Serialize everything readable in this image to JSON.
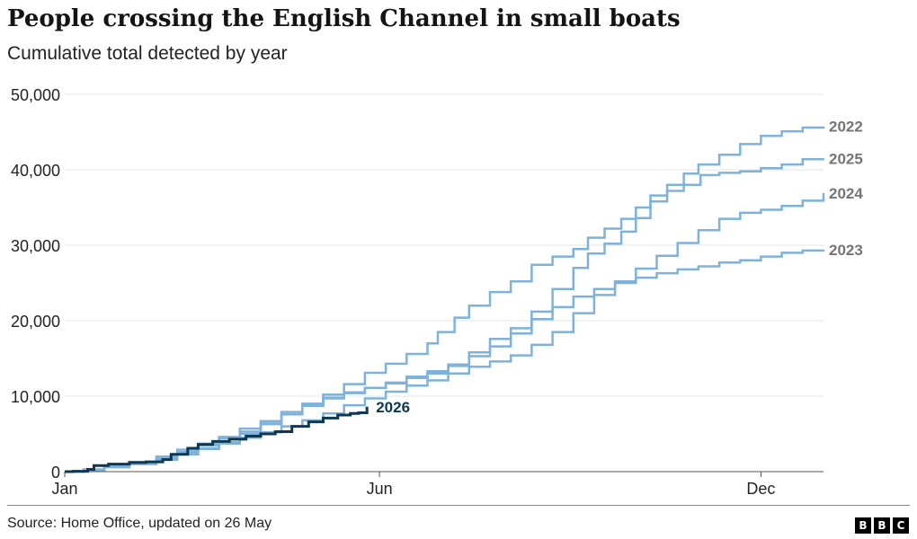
{
  "header": {
    "title": "People crossing the English Channel in small boats",
    "subtitle": "Cumulative total detected by year"
  },
  "footer": {
    "source": "Source: Home Office, updated on 26 May",
    "logo": [
      "B",
      "B",
      "C"
    ]
  },
  "colors": {
    "past_years": "#7fb2da",
    "current_year": "#0c3854",
    "label_past": "#757575",
    "gridline": "#e6e6e6",
    "axis": "#555555"
  },
  "chart_data": {
    "type": "line",
    "title": "People crossing the English Channel in small boats",
    "subtitle": "Cumulative total detected by year",
    "x_unit": "day of year",
    "xlim": [
      1,
      365
    ],
    "ylim": [
      0,
      50000
    ],
    "y_ticks": [
      0,
      10000,
      20000,
      30000,
      40000,
      50000
    ],
    "y_tick_labels": [
      "0",
      "10,000",
      "20,000",
      "30,000",
      "40,000",
      "50,000"
    ],
    "x_ticks": [
      1,
      152,
      335
    ],
    "x_tick_labels": [
      "Jan",
      "Jun",
      "Dec"
    ],
    "grid": true,
    "legend": "direct labels at line ends",
    "series": [
      {
        "name": "2022",
        "emphasis": false,
        "points": [
          [
            1,
            0
          ],
          [
            10,
            250
          ],
          [
            20,
            700
          ],
          [
            32,
            1200
          ],
          [
            45,
            1800
          ],
          [
            55,
            2600
          ],
          [
            65,
            3500
          ],
          [
            75,
            4400
          ],
          [
            85,
            5300
          ],
          [
            95,
            6600
          ],
          [
            105,
            7900
          ],
          [
            115,
            9000
          ],
          [
            125,
            10200
          ],
          [
            135,
            11600
          ],
          [
            145,
            13100
          ],
          [
            155,
            14300
          ],
          [
            165,
            15600
          ],
          [
            175,
            17000
          ],
          [
            180,
            18500
          ],
          [
            188,
            20400
          ],
          [
            195,
            22000
          ],
          [
            205,
            23800
          ],
          [
            215,
            25200
          ],
          [
            225,
            27400
          ],
          [
            235,
            28500
          ],
          [
            245,
            29500
          ],
          [
            252,
            31000
          ],
          [
            260,
            32200
          ],
          [
            268,
            33500
          ],
          [
            275,
            35000
          ],
          [
            282,
            36600
          ],
          [
            290,
            38000
          ],
          [
            298,
            39500
          ],
          [
            305,
            40700
          ],
          [
            315,
            42000
          ],
          [
            325,
            43400
          ],
          [
            335,
            44500
          ],
          [
            345,
            45100
          ],
          [
            355,
            45600
          ],
          [
            365,
            45750
          ]
        ]
      },
      {
        "name": "2025",
        "emphasis": false,
        "points": [
          [
            1,
            0
          ],
          [
            10,
            300
          ],
          [
            20,
            800
          ],
          [
            32,
            1300
          ],
          [
            45,
            2000
          ],
          [
            55,
            2900
          ],
          [
            65,
            3700
          ],
          [
            75,
            4600
          ],
          [
            85,
            5700
          ],
          [
            95,
            6700
          ],
          [
            105,
            7600
          ],
          [
            115,
            8700
          ],
          [
            125,
            9800
          ],
          [
            135,
            10500
          ],
          [
            145,
            11100
          ],
          [
            155,
            11800
          ],
          [
            165,
            12400
          ],
          [
            175,
            13000
          ],
          [
            185,
            14000
          ],
          [
            195,
            15800
          ],
          [
            205,
            17600
          ],
          [
            215,
            19000
          ],
          [
            225,
            21200
          ],
          [
            235,
            24200
          ],
          [
            245,
            27000
          ],
          [
            252,
            28900
          ],
          [
            260,
            30200
          ],
          [
            268,
            31800
          ],
          [
            275,
            33600
          ],
          [
            282,
            35800
          ],
          [
            290,
            37200
          ],
          [
            298,
            38000
          ],
          [
            306,
            39300
          ],
          [
            315,
            39600
          ],
          [
            325,
            39800
          ],
          [
            335,
            40200
          ],
          [
            345,
            40700
          ],
          [
            355,
            41400
          ],
          [
            365,
            41500
          ]
        ]
      },
      {
        "name": "2024",
        "emphasis": false,
        "points": [
          [
            1,
            0
          ],
          [
            10,
            200
          ],
          [
            20,
            600
          ],
          [
            32,
            1100
          ],
          [
            45,
            1600
          ],
          [
            55,
            2300
          ],
          [
            65,
            3000
          ],
          [
            75,
            3700
          ],
          [
            85,
            4500
          ],
          [
            95,
            5200
          ],
          [
            105,
            6000
          ],
          [
            115,
            6800
          ],
          [
            125,
            7700
          ],
          [
            135,
            8800
          ],
          [
            145,
            9700
          ],
          [
            155,
            10600
          ],
          [
            165,
            11400
          ],
          [
            175,
            12100
          ],
          [
            185,
            13000
          ],
          [
            195,
            13900
          ],
          [
            205,
            14600
          ],
          [
            215,
            15400
          ],
          [
            225,
            16800
          ],
          [
            235,
            18500
          ],
          [
            245,
            21000
          ],
          [
            255,
            23400
          ],
          [
            265,
            25200
          ],
          [
            275,
            26900
          ],
          [
            285,
            28600
          ],
          [
            295,
            30300
          ],
          [
            305,
            32000
          ],
          [
            315,
            33500
          ],
          [
            325,
            34300
          ],
          [
            335,
            34700
          ],
          [
            345,
            35200
          ],
          [
            355,
            35900
          ],
          [
            365,
            36900
          ]
        ]
      },
      {
        "name": "2023",
        "emphasis": false,
        "points": [
          [
            1,
            0
          ],
          [
            10,
            200
          ],
          [
            20,
            600
          ],
          [
            32,
            1000
          ],
          [
            45,
            1600
          ],
          [
            55,
            2300
          ],
          [
            65,
            3100
          ],
          [
            75,
            3900
          ],
          [
            85,
            5000
          ],
          [
            95,
            6300
          ],
          [
            105,
            7600
          ],
          [
            115,
            8900
          ],
          [
            125,
            9700
          ],
          [
            135,
            10400
          ],
          [
            145,
            11100
          ],
          [
            155,
            11700
          ],
          [
            165,
            12600
          ],
          [
            175,
            13300
          ],
          [
            185,
            14200
          ],
          [
            195,
            15300
          ],
          [
            205,
            16600
          ],
          [
            215,
            18300
          ],
          [
            225,
            20200
          ],
          [
            235,
            21800
          ],
          [
            245,
            23200
          ],
          [
            255,
            24200
          ],
          [
            265,
            25000
          ],
          [
            275,
            25700
          ],
          [
            285,
            26300
          ],
          [
            295,
            26800
          ],
          [
            305,
            27200
          ],
          [
            315,
            27700
          ],
          [
            325,
            28000
          ],
          [
            335,
            28500
          ],
          [
            345,
            29000
          ],
          [
            355,
            29300
          ],
          [
            365,
            29400
          ]
        ]
      },
      {
        "name": "2026",
        "emphasis": true,
        "points": [
          [
            1,
            0
          ],
          [
            5,
            50
          ],
          [
            12,
            300
          ],
          [
            15,
            800
          ],
          [
            22,
            1000
          ],
          [
            32,
            1200
          ],
          [
            40,
            1300
          ],
          [
            48,
            1600
          ],
          [
            52,
            2300
          ],
          [
            60,
            3100
          ],
          [
            65,
            3600
          ],
          [
            72,
            4000
          ],
          [
            80,
            4300
          ],
          [
            88,
            4700
          ],
          [
            95,
            5000
          ],
          [
            102,
            5300
          ],
          [
            110,
            6000
          ],
          [
            118,
            6600
          ],
          [
            125,
            7100
          ],
          [
            132,
            7500
          ],
          [
            138,
            7700
          ],
          [
            142,
            7800
          ],
          [
            146,
            8600
          ]
        ]
      }
    ]
  }
}
